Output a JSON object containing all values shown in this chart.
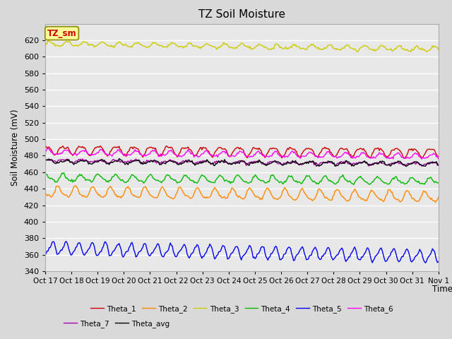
{
  "title": "TZ Soil Moisture",
  "xlabel": "Time",
  "ylabel": "Soil Moisture (mV)",
  "background_color": "#d9d9d9",
  "plot_bg_color": "#e8e8e8",
  "ylim": [
    340,
    640
  ],
  "yticks": [
    340,
    360,
    380,
    400,
    420,
    440,
    460,
    480,
    500,
    520,
    540,
    560,
    580,
    600,
    620
  ],
  "x_labels": [
    "Oct 17",
    "Oct 18",
    "Oct 19",
    "Oct 20",
    "Oct 21",
    "Oct 22",
    "Oct 23",
    "Oct 24",
    "Oct 25",
    "Oct 26",
    "Oct 27",
    "Oct 28",
    "Oct 29",
    "Oct 30",
    "Oct 31",
    "Nov 1"
  ],
  "annotation_text": "TZ_sm",
  "annotation_color": "#cc0000",
  "annotation_bg": "#ffff99",
  "annotation_border": "#888800",
  "series": {
    "Theta_1": {
      "color": "#cc0000",
      "base": 487,
      "trend": -3,
      "amp": 5.0,
      "freq": 1.5
    },
    "Theta_2": {
      "color": "#ff8800",
      "base": 436,
      "trend": -6,
      "amp": 6.0,
      "freq": 1.5
    },
    "Theta_3": {
      "color": "#cccc00",
      "base": 616,
      "trend": -7,
      "amp": 2.5,
      "freq": 1.5
    },
    "Theta_4": {
      "color": "#00bb00",
      "base": 453,
      "trend": -4,
      "amp": 4.0,
      "freq": 1.5
    },
    "Theta_5": {
      "color": "#0000ee",
      "base": 368,
      "trend": -10,
      "amp": 7.0,
      "freq": 2.0
    },
    "Theta_6": {
      "color": "#ff00ff",
      "base": 484,
      "trend": -5,
      "amp": 3.0,
      "freq": 1.5
    },
    "Theta_7": {
      "color": "#aa00aa",
      "base": 474,
      "trend": -4,
      "amp": 1.5,
      "freq": 1.5
    },
    "Theta_avg": {
      "color": "#000000",
      "base": 473,
      "trend": -3,
      "amp": 2.0,
      "freq": 1.5
    }
  },
  "n_points": 400,
  "line_width": 1.0
}
